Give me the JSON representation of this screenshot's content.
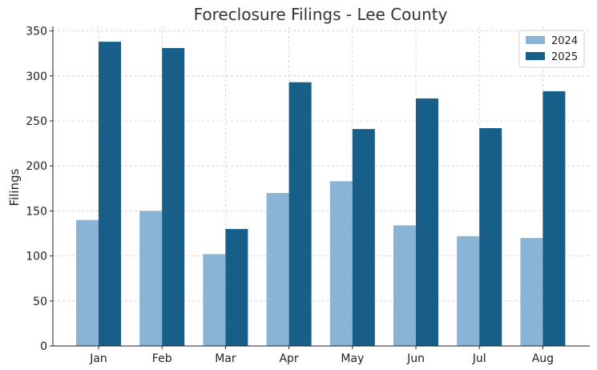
{
  "chart_data": {
    "type": "bar",
    "title": "Foreclosure Filings - Lee County",
    "xlabel": "",
    "ylabel": "Filings",
    "categories": [
      "Jan",
      "Feb",
      "Mar",
      "Apr",
      "May",
      "Jun",
      "Jul",
      "Aug"
    ],
    "series": [
      {
        "name": "2024",
        "color": "#8ab4d6",
        "values": [
          140,
          150,
          102,
          170,
          183,
          134,
          122,
          120
        ]
      },
      {
        "name": "2025",
        "color": "#175f88",
        "values": [
          338,
          331,
          130,
          293,
          241,
          275,
          242,
          283
        ]
      }
    ],
    "ylim": [
      0,
      355
    ],
    "yticks": [
      0,
      50,
      100,
      150,
      200,
      250,
      300,
      350
    ],
    "grid": true,
    "legend_position": "top-right"
  }
}
